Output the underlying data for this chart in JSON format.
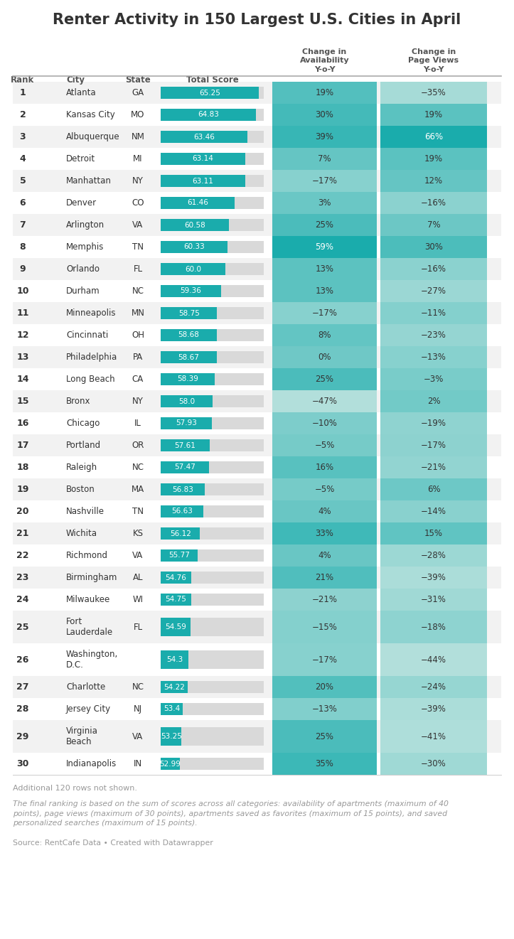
{
  "title": "Renter Activity in 150 Largest U.S. Cities in April",
  "footnote1": "Additional 120 rows not shown.",
  "footnote2": "The final ranking is based on the sum of scores across all categories: availability of apartments (maximum of 40 points), page views (maximum of 30 points), apartments saved as favorites (maximum of 15 points), and saved personalized searches (maximum of 15 points).",
  "source": "Source: RentCafe Data • Created with Datawrapper",
  "rows": [
    {
      "rank": 1,
      "city": "Atlanta",
      "state": "GA",
      "score": 65.25,
      "avail": 19,
      "pageviews": -35
    },
    {
      "rank": 2,
      "city": "Kansas City",
      "state": "MO",
      "score": 64.83,
      "avail": 30,
      "pageviews": 19
    },
    {
      "rank": 3,
      "city": "Albuquerque",
      "state": "NM",
      "score": 63.46,
      "avail": 39,
      "pageviews": 66
    },
    {
      "rank": 4,
      "city": "Detroit",
      "state": "MI",
      "score": 63.14,
      "avail": 7,
      "pageviews": 19
    },
    {
      "rank": 5,
      "city": "Manhattan",
      "state": "NY",
      "score": 63.11,
      "avail": -17,
      "pageviews": 12
    },
    {
      "rank": 6,
      "city": "Denver",
      "state": "CO",
      "score": 61.46,
      "avail": 3,
      "pageviews": -16
    },
    {
      "rank": 7,
      "city": "Arlington",
      "state": "VA",
      "score": 60.58,
      "avail": 25,
      "pageviews": 7
    },
    {
      "rank": 8,
      "city": "Memphis",
      "state": "TN",
      "score": 60.33,
      "avail": 59,
      "pageviews": 30
    },
    {
      "rank": 9,
      "city": "Orlando",
      "state": "FL",
      "score": 60.0,
      "avail": 13,
      "pageviews": -16
    },
    {
      "rank": 10,
      "city": "Durham",
      "state": "NC",
      "score": 59.36,
      "avail": 13,
      "pageviews": -27
    },
    {
      "rank": 11,
      "city": "Minneapolis",
      "state": "MN",
      "score": 58.75,
      "avail": -17,
      "pageviews": -11
    },
    {
      "rank": 12,
      "city": "Cincinnati",
      "state": "OH",
      "score": 58.68,
      "avail": 8,
      "pageviews": -23
    },
    {
      "rank": 13,
      "city": "Philadelphia",
      "state": "PA",
      "score": 58.67,
      "avail": 0,
      "pageviews": -13
    },
    {
      "rank": 14,
      "city": "Long Beach",
      "state": "CA",
      "score": 58.39,
      "avail": 25,
      "pageviews": -3
    },
    {
      "rank": 15,
      "city": "Bronx",
      "state": "NY",
      "score": 58.0,
      "avail": -47,
      "pageviews": 2
    },
    {
      "rank": 16,
      "city": "Chicago",
      "state": "IL",
      "score": 57.93,
      "avail": -10,
      "pageviews": -19
    },
    {
      "rank": 17,
      "city": "Portland",
      "state": "OR",
      "score": 57.61,
      "avail": -5,
      "pageviews": -17
    },
    {
      "rank": 18,
      "city": "Raleigh",
      "state": "NC",
      "score": 57.47,
      "avail": 16,
      "pageviews": -21
    },
    {
      "rank": 19,
      "city": "Boston",
      "state": "MA",
      "score": 56.83,
      "avail": -5,
      "pageviews": 6
    },
    {
      "rank": 20,
      "city": "Nashville",
      "state": "TN",
      "score": 56.63,
      "avail": 4,
      "pageviews": -14
    },
    {
      "rank": 21,
      "city": "Wichita",
      "state": "KS",
      "score": 56.12,
      "avail": 33,
      "pageviews": 15
    },
    {
      "rank": 22,
      "city": "Richmond",
      "state": "VA",
      "score": 55.77,
      "avail": 4,
      "pageviews": -28
    },
    {
      "rank": 23,
      "city": "Birmingham",
      "state": "AL",
      "score": 54.76,
      "avail": 21,
      "pageviews": -39
    },
    {
      "rank": 24,
      "city": "Milwaukee",
      "state": "WI",
      "score": 54.75,
      "avail": -21,
      "pageviews": -31
    },
    {
      "rank": 25,
      "city": "Fort\nLauderdale",
      "state": "FL",
      "score": 54.59,
      "avail": -15,
      "pageviews": -18
    },
    {
      "rank": 26,
      "city": "Washington,\nD.C.",
      "state": "",
      "score": 54.3,
      "avail": -17,
      "pageviews": -44
    },
    {
      "rank": 27,
      "city": "Charlotte",
      "state": "NC",
      "score": 54.22,
      "avail": 20,
      "pageviews": -24
    },
    {
      "rank": 28,
      "city": "Jersey City",
      "state": "NJ",
      "score": 53.4,
      "avail": -13,
      "pageviews": -39
    },
    {
      "rank": 29,
      "city": "Virginia\nBeach",
      "state": "VA",
      "score": 53.25,
      "avail": 25,
      "pageviews": -41
    },
    {
      "rank": 30,
      "city": "Indianapolis",
      "state": "IN",
      "score": 52.99,
      "avail": 35,
      "pageviews": -30
    }
  ],
  "avail_min": -47,
  "avail_max": 59,
  "pageviews_min": -44,
  "pageviews_max": 66,
  "score_bar_color": "#1aacac",
  "color_low": "#b2dfdb",
  "color_high": "#1aacac",
  "row_odd_color": "#f2f2f2",
  "row_even_color": "#ffffff",
  "text_color": "#333333",
  "header_color": "#555555",
  "title_color": "#333333",
  "footnote_color": "#999999"
}
